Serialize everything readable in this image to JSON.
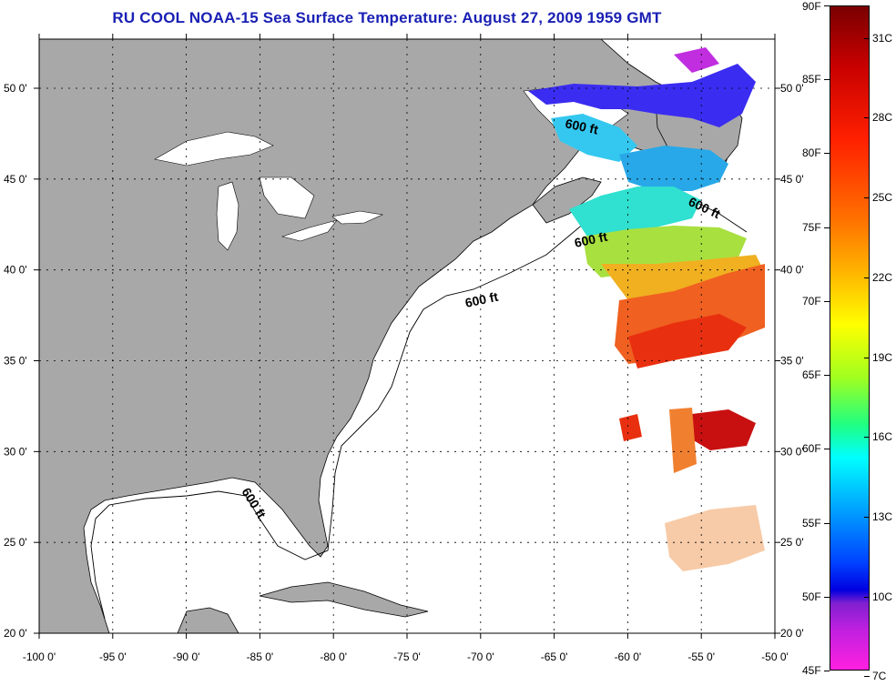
{
  "title": "RU COOL  NOAA-15  Sea Surface Temperature:  August 27, 2009 1959 GMT",
  "map": {
    "lon_labels": [
      "-100 0'",
      "-95 0'",
      "-90 0'",
      "-85 0'",
      "-80 0'",
      "-75 0'",
      "-70 0'",
      "-65 0'",
      "-60 0'",
      "-55 0'",
      "-50 0'"
    ],
    "lat_labels": [
      "50 0'",
      "45 0'",
      "40 0'",
      "35 0'",
      "30 0'",
      "25 0'",
      "20 0'"
    ],
    "contour_label": "600 ft",
    "colors": {
      "land": "#a8a8a8",
      "ocean": "#ffffff",
      "grid": "#000000",
      "title": "#1a20b4"
    }
  },
  "colorbar": {
    "fahrenheit": [
      {
        "label": "90F",
        "value": 90
      },
      {
        "label": "85F",
        "value": 85
      },
      {
        "label": "80F",
        "value": 80
      },
      {
        "label": "75F",
        "value": 75
      },
      {
        "label": "70F",
        "value": 70
      },
      {
        "label": "65F",
        "value": 65
      },
      {
        "label": "60F",
        "value": 60
      },
      {
        "label": "55F",
        "value": 55
      },
      {
        "label": "50F",
        "value": 50
      },
      {
        "label": "45F",
        "value": 45
      }
    ],
    "celsius": [
      {
        "label": "31C",
        "value": 31
      },
      {
        "label": "28C",
        "value": 28
      },
      {
        "label": "25C",
        "value": 25
      },
      {
        "label": "22C",
        "value": 22
      },
      {
        "label": "19C",
        "value": 19
      },
      {
        "label": "16C",
        "value": 16
      },
      {
        "label": "13C",
        "value": 13
      },
      {
        "label": "10C",
        "value": 10
      },
      {
        "label": "7C",
        "value": 7
      }
    ],
    "range_f": [
      45,
      90
    ]
  }
}
